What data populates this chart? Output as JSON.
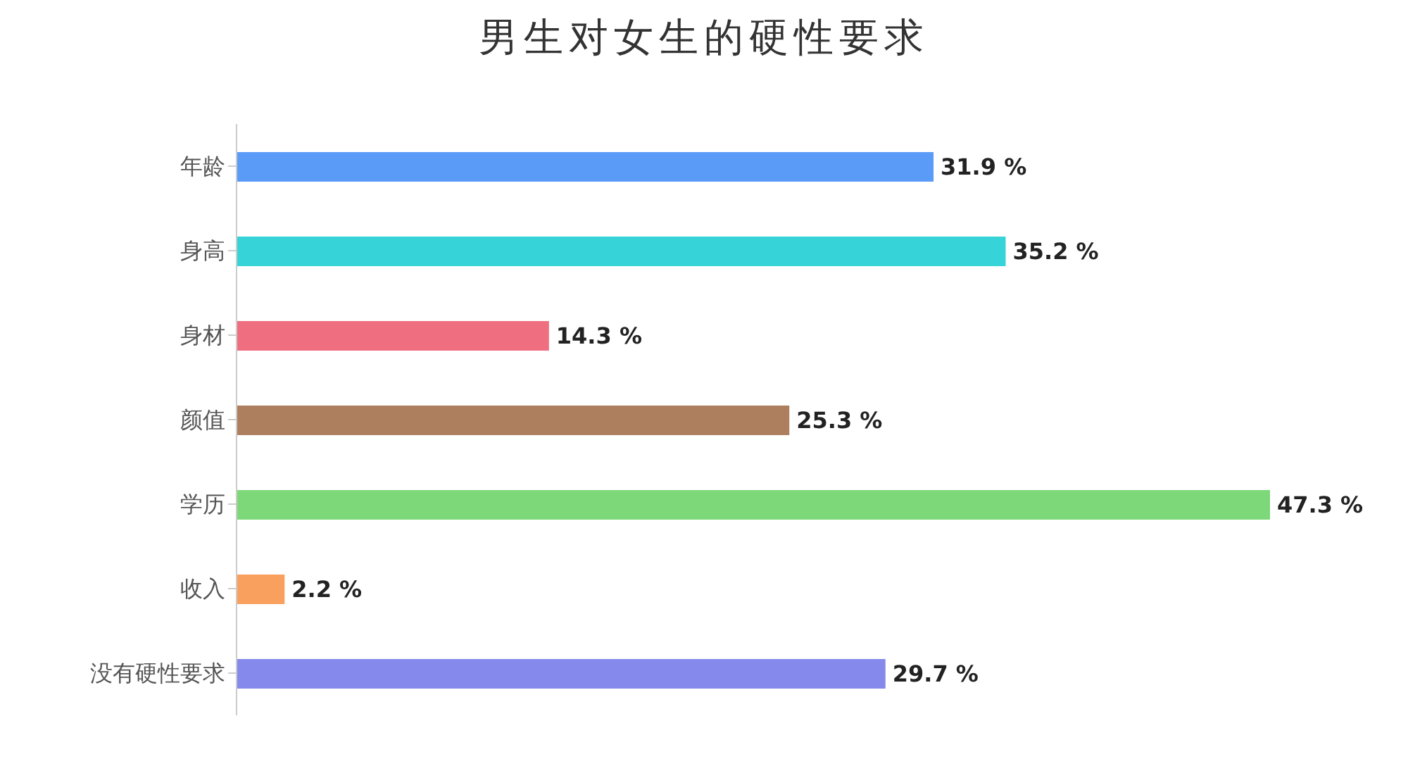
{
  "chart_data": {
    "type": "bar",
    "orientation": "horizontal",
    "title": "男生对女生的硬性要求",
    "categories": [
      "年龄",
      "身高",
      "身材",
      "颜值",
      "学历",
      "收入",
      "没有硬性要求"
    ],
    "values": [
      31.9,
      35.2,
      14.3,
      25.3,
      47.3,
      2.2,
      29.7
    ],
    "value_labels": [
      "31.9 %",
      "35.2 %",
      "14.3 %",
      "25.3 %",
      "47.3 %",
      "2.2 %",
      "29.7 %"
    ],
    "colors": [
      "#5b9bf8",
      "#36d4d8",
      "#ef6e80",
      "#ae7f5f",
      "#7dd87a",
      "#f9a05e",
      "#8589ec"
    ],
    "grid": false
  }
}
